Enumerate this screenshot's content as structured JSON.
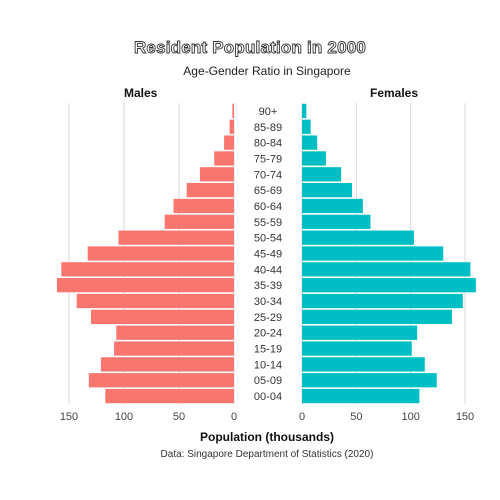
{
  "chart_data": {
    "type": "bar",
    "title": "Resident Population in 2000",
    "subtitle": "Age-Gender Ratio in Singapore",
    "left_panel_label": "Males",
    "right_panel_label": "Females",
    "xlabel": "Population (thousands)",
    "caption": "Data: Singapore Department of Statistics (2020)",
    "xlim": [
      0,
      160
    ],
    "xticks": [
      0,
      50,
      100,
      150
    ],
    "categories": [
      "00-04",
      "05-09",
      "10-14",
      "15-19",
      "20-24",
      "25-29",
      "30-34",
      "35-39",
      "40-44",
      "45-49",
      "50-54",
      "55-59",
      "60-64",
      "65-69",
      "70-74",
      "75-79",
      "80-84",
      "85-89",
      "90+"
    ],
    "series": [
      {
        "name": "Males",
        "color": "#F8766D",
        "values": [
          117,
          132,
          121,
          109,
          107,
          130,
          143,
          161,
          157,
          133,
          105,
          63,
          55,
          43,
          31,
          18,
          9,
          4,
          1.5
        ]
      },
      {
        "name": "Females",
        "color": "#00BFC4",
        "values": [
          108,
          124,
          113,
          101,
          106,
          138,
          148,
          160,
          155,
          130,
          103,
          63,
          56,
          46,
          36,
          22,
          14,
          8,
          4
        ]
      }
    ],
    "grid": true
  }
}
